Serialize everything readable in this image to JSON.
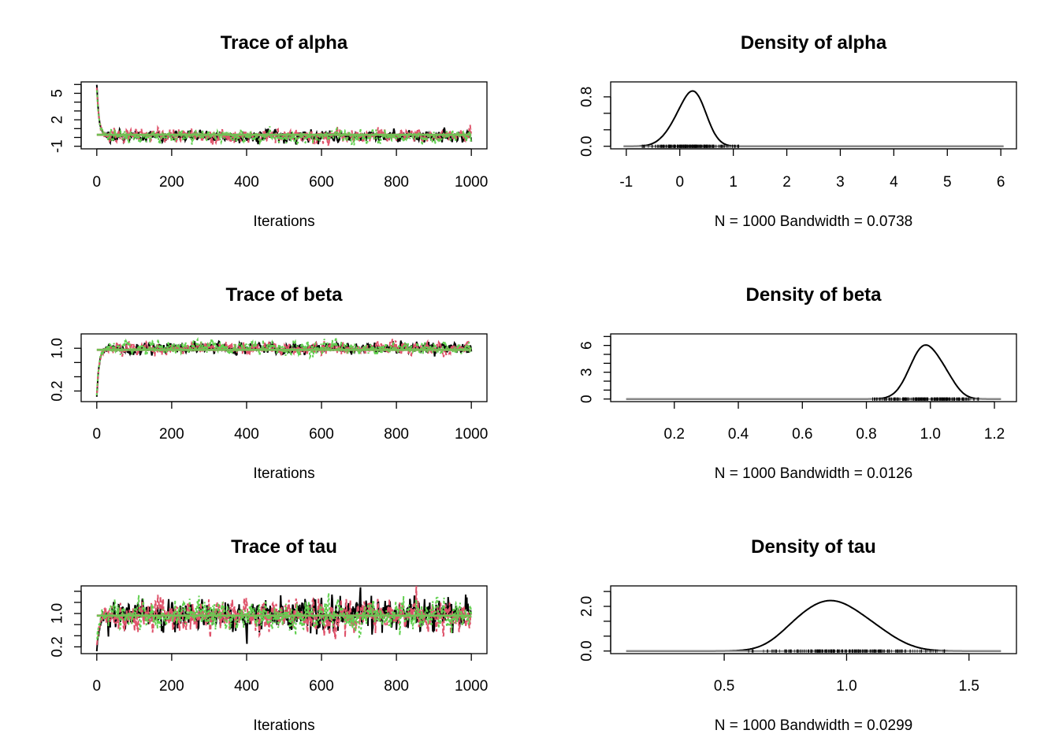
{
  "colors": {
    "chain1": "#000000",
    "chain2": "#DF536B",
    "chain3": "#61D04F",
    "rug": "#000000"
  },
  "chart_data": [
    {
      "id": "trace-alpha",
      "type": "line",
      "kind": "trace",
      "title": "Trace of alpha",
      "xlabel": "Iterations",
      "xlim": [
        0,
        1000
      ],
      "ylim": [
        -1,
        6
      ],
      "xticks": [
        "0",
        "200",
        "400",
        "600",
        "800",
        "1000"
      ],
      "yticks": [
        "-1",
        "2",
        "5"
      ],
      "chains": [
        {
          "start": 6.0,
          "level": 0.15,
          "sd": 0.25,
          "seed": 11
        },
        {
          "start": 5.8,
          "level": 0.15,
          "sd": 0.28,
          "seed": 23
        },
        {
          "start": 5.5,
          "level": 0.15,
          "sd": 0.27,
          "seed": 37
        }
      ],
      "mean": 0.3
    },
    {
      "id": "density-alpha",
      "type": "line",
      "kind": "density",
      "title": "Density of alpha",
      "xlabel": "N = 1000   Bandwidth = 0.0738",
      "xlim": [
        -1,
        6
      ],
      "ylim": [
        0,
        1
      ],
      "xticks": [
        "-1",
        "0",
        "1",
        "2",
        "3",
        "4",
        "5",
        "6"
      ],
      "yticks": [
        "0.0",
        "0.8"
      ],
      "peaks": [
        {
          "mu": 0.3,
          "sd": 0.22,
          "h": 0.7
        },
        {
          "mu": 0.0,
          "sd": 0.25,
          "h": 0.35
        }
      ],
      "curve_range": [
        -1.05,
        6.05
      ],
      "rug_range": [
        -0.7,
        1.1
      ]
    },
    {
      "id": "trace-beta",
      "type": "line",
      "kind": "trace",
      "title": "Trace of beta",
      "xlabel": "Iterations",
      "xlim": [
        0,
        1000
      ],
      "ylim": [
        0.05,
        1.22
      ],
      "xticks": [
        "0",
        "200",
        "400",
        "600",
        "800",
        "1000"
      ],
      "yticks": [
        "0.2",
        "1.0"
      ],
      "chains": [
        {
          "start": 0.06,
          "level": 1.0,
          "sd": 0.04,
          "seed": 41
        },
        {
          "start": 0.1,
          "level": 1.0,
          "sd": 0.045,
          "seed": 53
        },
        {
          "start": 0.14,
          "level": 1.0,
          "sd": 0.045,
          "seed": 67
        }
      ],
      "mean": 0.97
    },
    {
      "id": "density-beta",
      "type": "line",
      "kind": "density",
      "title": "Density of beta",
      "xlabel": "N = 1000   Bandwidth = 0.0126",
      "xlim": [
        0.05,
        1.22
      ],
      "ylim": [
        0,
        7
      ],
      "xticks": [
        "0.2",
        "0.4",
        "0.6",
        "0.8",
        "1.0",
        "1.2"
      ],
      "yticks": [
        "0",
        "3",
        "6"
      ],
      "peaks": [
        {
          "mu": 0.98,
          "sd": 0.045,
          "h": 5.8
        },
        {
          "mu": 1.05,
          "sd": 0.035,
          "h": 1.6
        }
      ],
      "curve_range": [
        0.05,
        1.22
      ],
      "rug_range": [
        0.82,
        1.15
      ]
    },
    {
      "id": "trace-tau",
      "type": "line",
      "kind": "trace",
      "title": "Trace of tau",
      "xlabel": "Iterations",
      "xlim": [
        0,
        1000
      ],
      "ylim": [
        0.1,
        1.6
      ],
      "xticks": [
        "0",
        "200",
        "400",
        "600",
        "800",
        "1000"
      ],
      "yticks": [
        "0.2",
        "1.0"
      ],
      "chains": [
        {
          "start": 0.12,
          "level": 0.95,
          "sd": 0.15,
          "seed": 71
        },
        {
          "start": 0.2,
          "level": 0.95,
          "sd": 0.15,
          "seed": 83
        },
        {
          "start": 0.3,
          "level": 0.95,
          "sd": 0.14,
          "seed": 97
        }
      ],
      "mean": 0.95
    },
    {
      "id": "density-tau",
      "type": "line",
      "kind": "density",
      "title": "Density of tau",
      "xlabel": "N = 1000   Bandwidth = 0.0299",
      "xlim": [
        0.1,
        1.63
      ],
      "ylim": [
        0,
        2.8
      ],
      "xticks": [
        "0.5",
        "1.0",
        "1.5"
      ],
      "yticks": [
        "0.0",
        "2.0"
      ],
      "peaks": [
        {
          "mu": 0.93,
          "sd": 0.12,
          "h": 2.1
        },
        {
          "mu": 1.12,
          "sd": 0.1,
          "h": 0.6
        },
        {
          "mu": 0.78,
          "sd": 0.08,
          "h": 0.35
        }
      ],
      "curve_range": [
        0.1,
        1.63
      ],
      "rug_range": [
        0.6,
        1.4
      ]
    }
  ]
}
